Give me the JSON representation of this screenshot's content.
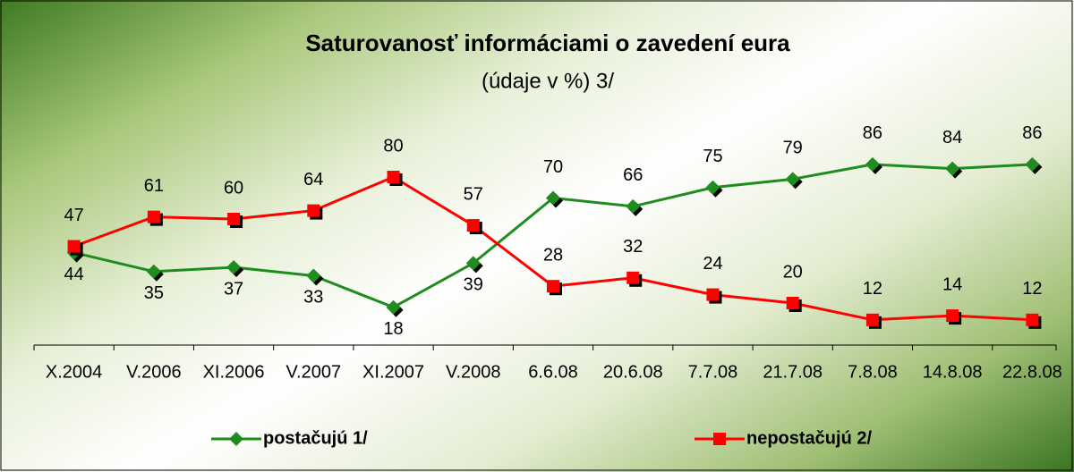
{
  "chart_data": {
    "type": "line",
    "title": "Saturovanosť informáciami o zavedení eura",
    "subtitle": "(údaje v %) 3/",
    "categories": [
      "X.2004",
      "V.2006",
      "XI.2006",
      "V.2007",
      "XI.2007",
      "V.2008",
      "6.6.08",
      "20.6.08",
      "7.7.08",
      "21.7.08",
      "7.8.08",
      "14.8.08",
      "22.8.08"
    ],
    "series": [
      {
        "name": "postačujú 1/",
        "color": "#1e8c1e",
        "values": [
          44,
          35,
          37,
          33,
          18,
          39,
          70,
          66,
          75,
          79,
          86,
          84,
          86
        ]
      },
      {
        "name": "nepostačujú 2/",
        "color": "#ff0000",
        "values": [
          47,
          61,
          60,
          64,
          80,
          57,
          28,
          32,
          24,
          20,
          12,
          14,
          12
        ]
      }
    ],
    "ylim": [
      0,
      100
    ]
  }
}
